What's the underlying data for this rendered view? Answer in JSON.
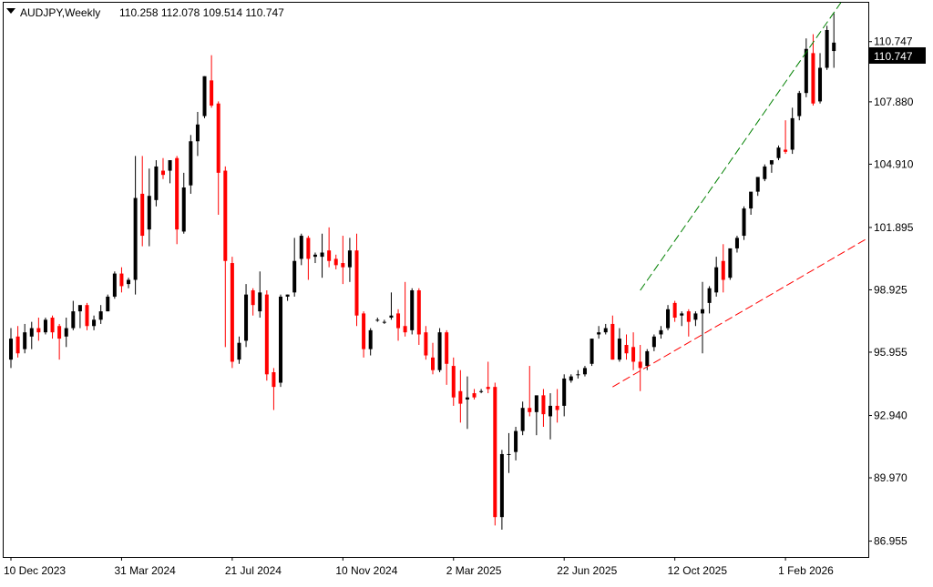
{
  "header": {
    "symbol_tf": "AUDJPY,Weekly",
    "ohlc": "110.258 112.078 109.514 110.747"
  },
  "chart_data": {
    "type": "candlestick",
    "title": "AUDJPY,Weekly",
    "ohlc_readout": {
      "open": 110.258,
      "high": 112.078,
      "low": 109.514,
      "close": 110.747
    },
    "last_price_label": "110.747",
    "y_ticks": [
      "110.747",
      "107.880",
      "104.910",
      "101.895",
      "98.925",
      "95.955",
      "92.940",
      "89.970",
      "86.955"
    ],
    "x_ticks": [
      {
        "label": "10 Dec 2023",
        "index": 0
      },
      {
        "label": "31 Mar 2024",
        "index": 16
      },
      {
        "label": "21 Jul 2024",
        "index": 32
      },
      {
        "label": "10 Nov 2024",
        "index": 48
      },
      {
        "label": "2 Mar 2025",
        "index": 64
      },
      {
        "label": "22 Jun 2025",
        "index": 80
      },
      {
        "label": "12 Oct 2025",
        "index": 96
      },
      {
        "label": "1 Feb 2026",
        "index": 112
      }
    ],
    "ylim": [
      86.2,
      112.6
    ],
    "up_color": "#000000",
    "down_color": "#ff0000",
    "candles": [
      [
        95.6,
        97.1,
        95.2,
        96.6
      ],
      [
        96.7,
        97.2,
        95.7,
        95.9
      ],
      [
        96.1,
        97.3,
        95.9,
        96.9
      ],
      [
        96.7,
        97.4,
        96.1,
        97.1
      ],
      [
        97.1,
        97.6,
        96.5,
        96.9
      ],
      [
        96.9,
        97.6,
        96.8,
        97.5
      ],
      [
        97.6,
        97.7,
        96.6,
        96.9
      ],
      [
        97.2,
        97.3,
        95.6,
        96.6
      ],
      [
        96.7,
        97.6,
        96.2,
        97.1
      ],
      [
        97.1,
        98.4,
        97.0,
        97.9
      ],
      [
        97.9,
        98.1,
        97.1,
        98.2
      ],
      [
        98.2,
        98.3,
        97.0,
        97.2
      ],
      [
        97.2,
        97.7,
        97.0,
        97.5
      ],
      [
        97.5,
        98.2,
        97.3,
        97.9
      ],
      [
        97.9,
        98.7,
        97.9,
        98.6
      ],
      [
        98.6,
        99.8,
        98.5,
        99.7
      ],
      [
        99.7,
        100.0,
        98.8,
        99.1
      ],
      [
        99.2,
        99.5,
        99.0,
        99.4
      ],
      [
        99.4,
        105.3,
        98.7,
        103.3
      ],
      [
        103.5,
        105.3,
        101.0,
        101.5
      ],
      [
        101.8,
        104.7,
        101.0,
        103.4
      ],
      [
        103.2,
        105.1,
        102.9,
        104.8
      ],
      [
        104.6,
        105.2,
        104.2,
        104.4
      ],
      [
        104.6,
        105.0,
        104.0,
        105.1
      ],
      [
        105.2,
        105.3,
        101.1,
        101.8
      ],
      [
        101.7,
        104.5,
        101.6,
        103.8
      ],
      [
        103.9,
        106.3,
        103.5,
        106.0
      ],
      [
        106.0,
        107.4,
        105.3,
        106.8
      ],
      [
        107.2,
        109.1,
        107.1,
        109.1
      ],
      [
        108.9,
        110.1,
        107.6,
        107.7
      ],
      [
        107.8,
        107.9,
        102.5,
        104.5
      ],
      [
        104.6,
        104.8,
        96.2,
        100.3
      ],
      [
        100.2,
        100.5,
        95.2,
        95.5
      ],
      [
        95.6,
        96.7,
        95.4,
        96.4
      ],
      [
        96.5,
        99.2,
        96.2,
        98.7
      ],
      [
        98.9,
        99.0,
        97.7,
        98.2
      ],
      [
        97.9,
        99.8,
        97.6,
        98.8
      ],
      [
        98.7,
        98.9,
        94.6,
        94.9
      ],
      [
        95.0,
        95.2,
        93.2,
        94.3
      ],
      [
        94.5,
        98.7,
        94.3,
        98.6
      ],
      [
        98.6,
        98.7,
        98.4,
        98.7
      ],
      [
        98.8,
        101.4,
        98.6,
        100.3
      ],
      [
        100.4,
        101.6,
        100.1,
        101.5
      ],
      [
        101.4,
        101.5,
        99.4,
        100.4
      ],
      [
        100.5,
        100.7,
        100.2,
        100.6
      ],
      [
        100.5,
        101.6,
        99.5,
        100.7
      ],
      [
        100.8,
        101.9,
        100.0,
        100.3
      ],
      [
        100.4,
        100.6,
        99.9,
        100.1
      ],
      [
        100.2,
        101.5,
        99.2,
        100.0
      ],
      [
        100.0,
        101.4,
        99.3,
        100.8
      ],
      [
        100.8,
        101.6,
        97.2,
        97.7
      ],
      [
        97.8,
        97.9,
        95.7,
        96.1
      ],
      [
        96.1,
        97.1,
        95.8,
        97.0
      ],
      [
        97.5,
        97.6,
        97.4,
        97.5
      ],
      [
        97.4,
        97.5,
        97.3,
        97.4
      ],
      [
        97.6,
        98.8,
        97.5,
        97.7
      ],
      [
        97.8,
        98.0,
        96.5,
        97.1
      ],
      [
        97.2,
        99.3,
        96.7,
        96.9
      ],
      [
        97.0,
        99.0,
        96.8,
        98.9
      ],
      [
        98.9,
        99.0,
        96.3,
        96.8
      ],
      [
        96.9,
        97.2,
        95.6,
        95.8
      ],
      [
        95.7,
        96.4,
        94.9,
        95.1
      ],
      [
        95.1,
        97.1,
        95.0,
        96.9
      ],
      [
        96.9,
        97.0,
        94.4,
        95.4
      ],
      [
        95.3,
        95.7,
        93.4,
        93.8
      ],
      [
        94.1,
        95.1,
        92.6,
        93.5
      ],
      [
        93.7,
        94.8,
        92.3,
        93.8
      ],
      [
        94.0,
        94.2,
        93.7,
        93.8
      ],
      [
        94.1,
        94.2,
        94.0,
        94.1
      ],
      [
        94.3,
        95.5,
        94.0,
        94.2
      ],
      [
        94.3,
        94.5,
        87.7,
        88.1
      ],
      [
        88.1,
        91.3,
        87.5,
        91.1
      ],
      [
        91.1,
        92.1,
        90.2,
        91.1
      ],
      [
        91.2,
        92.4,
        90.8,
        92.2
      ],
      [
        92.2,
        93.6,
        92.0,
        93.3
      ],
      [
        93.3,
        95.3,
        92.9,
        93.1
      ],
      [
        93.1,
        93.7,
        92.0,
        93.9
      ],
      [
        93.9,
        94.2,
        92.4,
        93.0
      ],
      [
        92.9,
        94.0,
        91.8,
        93.4
      ],
      [
        93.4,
        94.2,
        92.6,
        93.2
      ],
      [
        93.4,
        94.9,
        92.9,
        94.7
      ],
      [
        94.6,
        94.9,
        94.5,
        94.8
      ],
      [
        94.9,
        95.1,
        94.7,
        94.9
      ],
      [
        94.9,
        95.3,
        94.8,
        95.2
      ],
      [
        95.4,
        96.6,
        95.3,
        96.6
      ],
      [
        96.8,
        97.2,
        96.6,
        96.9
      ],
      [
        96.9,
        97.3,
        96.8,
        97.1
      ],
      [
        97.3,
        97.7,
        95.6,
        95.6
      ],
      [
        95.6,
        97.1,
        95.5,
        96.6
      ],
      [
        96.3,
        96.8,
        95.6,
        95.9
      ],
      [
        96.2,
        96.9,
        95.1,
        95.5
      ],
      [
        95.5,
        96.3,
        94.1,
        95.2
      ],
      [
        95.3,
        96.1,
        95.1,
        96.0
      ],
      [
        96.2,
        96.8,
        96.0,
        96.7
      ],
      [
        96.8,
        97.2,
        96.6,
        97.0
      ],
      [
        97.1,
        98.2,
        97.0,
        98.0
      ],
      [
        98.3,
        98.4,
        97.4,
        97.6
      ],
      [
        97.7,
        97.9,
        97.2,
        97.8
      ],
      [
        97.9,
        98.0,
        96.7,
        97.4
      ],
      [
        97.5,
        97.9,
        97.2,
        97.8
      ],
      [
        97.8,
        99.3,
        95.9,
        98.0
      ],
      [
        98.3,
        99.1,
        97.8,
        99.0
      ],
      [
        98.8,
        100.5,
        98.6,
        100.0
      ],
      [
        100.3,
        101.1,
        98.8,
        99.4
      ],
      [
        99.5,
        100.8,
        99.4,
        100.9
      ],
      [
        100.9,
        101.5,
        100.7,
        101.4
      ],
      [
        101.5,
        102.9,
        101.3,
        102.8
      ],
      [
        102.8,
        103.5,
        102.5,
        103.6
      ],
      [
        103.6,
        104.3,
        103.4,
        104.3
      ],
      [
        104.2,
        104.9,
        104.1,
        104.8
      ],
      [
        104.9,
        105.0,
        104.5,
        105.1
      ],
      [
        105.2,
        105.8,
        105.1,
        105.7
      ],
      [
        105.6,
        107.0,
        105.4,
        105.5
      ],
      [
        105.6,
        107.6,
        105.4,
        107.1
      ],
      [
        107.2,
        108.4,
        107.0,
        108.3
      ],
      [
        108.3,
        110.9,
        108.1,
        110.4
      ],
      [
        110.2,
        111.1,
        107.7,
        107.8
      ],
      [
        107.9,
        110.2,
        107.8,
        109.5
      ],
      [
        109.5,
        111.5,
        109.4,
        111.3
      ],
      [
        110.3,
        112.1,
        109.5,
        110.7
      ]
    ],
    "trendlines": [
      {
        "color": "#008000",
        "style": "dashed",
        "from": {
          "index": 91,
          "value": 98.9
        },
        "to": {
          "index": 120,
          "value": 112.6
        }
      },
      {
        "color": "#ff0000",
        "style": "dashed",
        "from": {
          "index": 87,
          "value": 94.3
        },
        "to": {
          "index": 125,
          "value": 101.6
        }
      }
    ],
    "grid": false,
    "legend": "none"
  }
}
